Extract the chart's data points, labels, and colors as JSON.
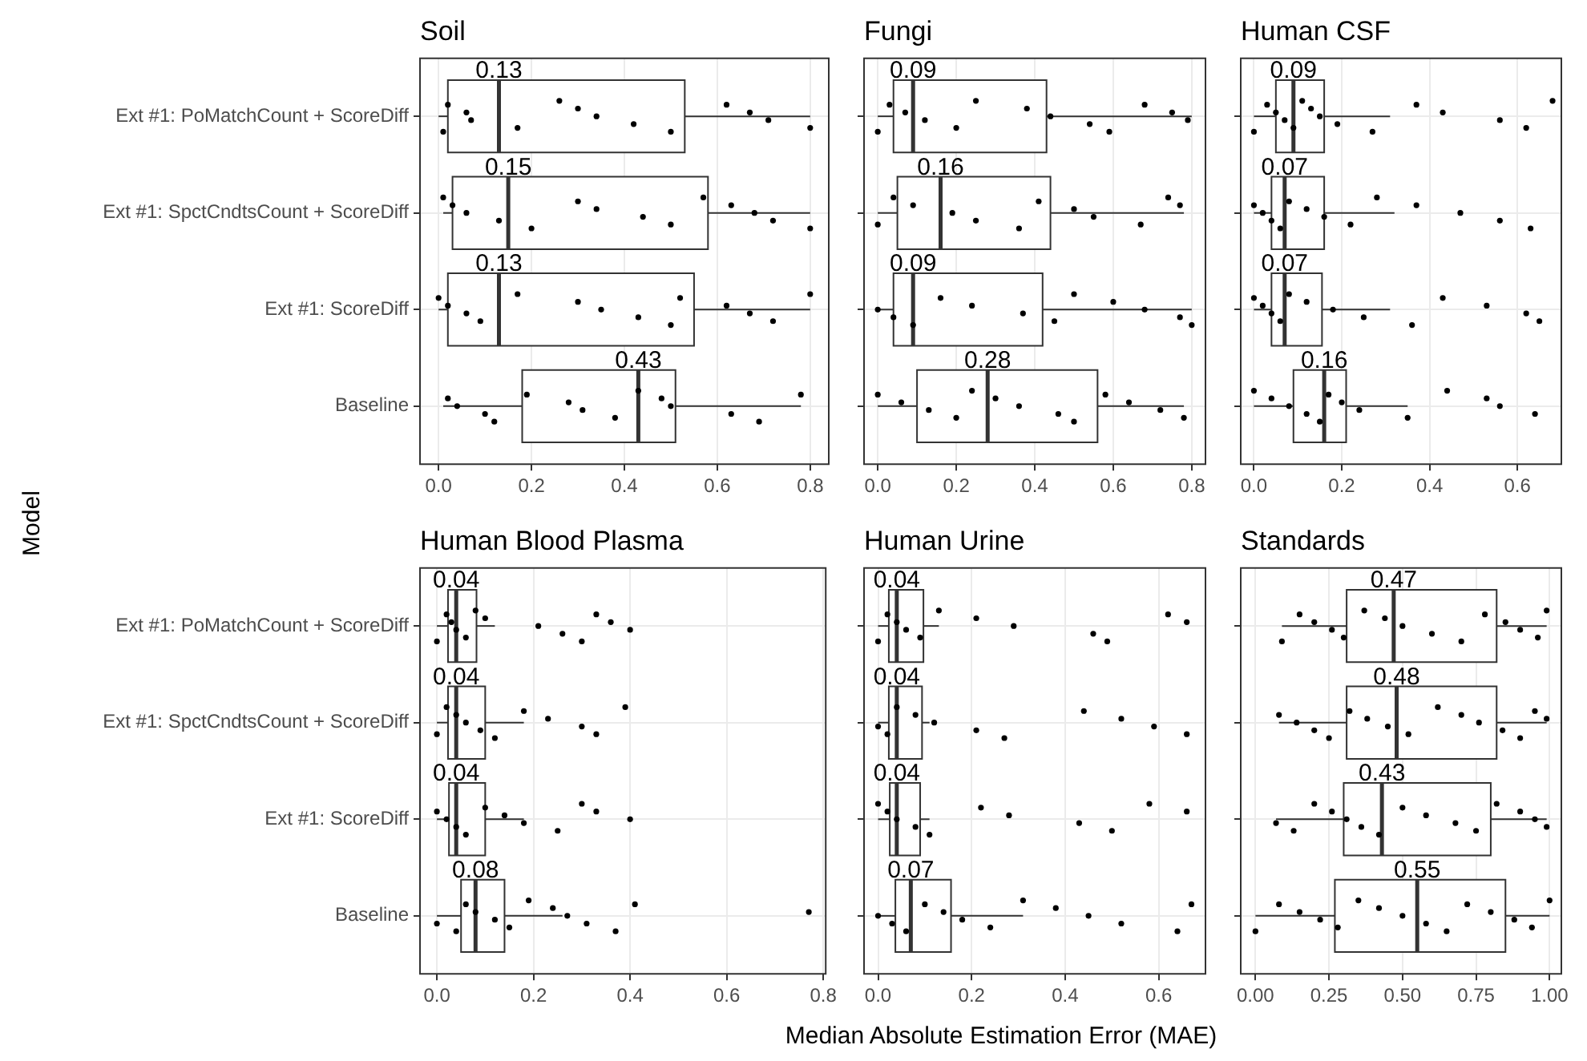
{
  "chart_data": [
    {
      "type": "box",
      "orientation": "horizontal",
      "title": "Soil",
      "ylabel": "Model",
      "grid": true,
      "categories": [
        "Ext #1: PoMatchCount + ScoreDiff",
        "Ext #1: SpctCndtsCount + ScoreDiff",
        "Ext #1: ScoreDiff",
        "Baseline"
      ],
      "xlim": [
        -0.04,
        0.84
      ],
      "xticks": [
        {
          "value": 0,
          "label": "0.0"
        },
        0.2,
        0.4,
        0.6,
        0.8
      ],
      "boxes": [
        {
          "low": 0.0,
          "q1": 0.02,
          "median": 0.13,
          "q3": 0.53,
          "high": 0.8
        },
        {
          "low": 0.01,
          "q1": 0.03,
          "median": 0.15,
          "q3": 0.58,
          "high": 0.8
        },
        {
          "low": 0.0,
          "q1": 0.02,
          "median": 0.13,
          "q3": 0.55,
          "high": 0.8
        },
        {
          "low": 0.01,
          "q1": 0.18,
          "median": 0.43,
          "q3": 0.51,
          "high": 0.78
        }
      ],
      "annotations": [
        {
          "text": "0.13",
          "x": 0.13,
          "y": "Ext #1: PoMatchCount + ScoreDiff"
        },
        {
          "text": "0.15",
          "x": 0.15,
          "y": "Ext #1: SpctCndtsCount + ScoreDiff"
        },
        {
          "text": "0.13",
          "x": 0.13,
          "y": "Ext #1: ScoreDiff"
        },
        {
          "text": "0.43",
          "x": 0.43,
          "y": "Baseline"
        }
      ],
      "series": [
        {
          "type": "scatter",
          "color": "#000000",
          "marker": "circle",
          "x": [
            "Ext #1: PoMatchCount + ScoreDiff",
            "Ext #1: PoMatchCount + ScoreDiff",
            "Ext #1: PoMatchCount + ScoreDiff",
            "Ext #1: PoMatchCount + ScoreDiff",
            "Ext #1: PoMatchCount + ScoreDiff",
            "Ext #1: PoMatchCount + ScoreDiff",
            "Ext #1: PoMatchCount + ScoreDiff",
            "Ext #1: PoMatchCount + ScoreDiff",
            "Ext #1: PoMatchCount + ScoreDiff",
            "Ext #1: PoMatchCount + ScoreDiff",
            "Ext #1: PoMatchCount + ScoreDiff",
            "Ext #1: PoMatchCount + ScoreDiff",
            "Ext #1: PoMatchCount + ScoreDiff",
            "Ext #1: PoMatchCount + ScoreDiff",
            "Ext #1: SpctCndtsCount + ScoreDiff",
            "Ext #1: SpctCndtsCount + ScoreDiff",
            "Ext #1: SpctCndtsCount + ScoreDiff",
            "Ext #1: SpctCndtsCount + ScoreDiff",
            "Ext #1: SpctCndtsCount + ScoreDiff",
            "Ext #1: SpctCndtsCount + ScoreDiff",
            "Ext #1: SpctCndtsCount + ScoreDiff",
            "Ext #1: SpctCndtsCount + ScoreDiff",
            "Ext #1: SpctCndtsCount + ScoreDiff",
            "Ext #1: SpctCndtsCount + ScoreDiff",
            "Ext #1: SpctCndtsCount + ScoreDiff",
            "Ext #1: SpctCndtsCount + ScoreDiff",
            "Ext #1: SpctCndtsCount + ScoreDiff",
            "Ext #1: SpctCndtsCount + ScoreDiff",
            "Ext #1: ScoreDiff",
            "Ext #1: ScoreDiff",
            "Ext #1: ScoreDiff",
            "Ext #1: ScoreDiff",
            "Ext #1: ScoreDiff",
            "Ext #1: ScoreDiff",
            "Ext #1: ScoreDiff",
            "Ext #1: ScoreDiff",
            "Ext #1: ScoreDiff",
            "Ext #1: ScoreDiff",
            "Ext #1: ScoreDiff",
            "Ext #1: ScoreDiff",
            "Ext #1: ScoreDiff",
            "Ext #1: ScoreDiff",
            "Baseline",
            "Baseline",
            "Baseline",
            "Baseline",
            "Baseline",
            "Baseline",
            "Baseline",
            "Baseline",
            "Baseline",
            "Baseline",
            "Baseline",
            "Baseline",
            "Baseline",
            "Baseline"
          ],
          "values": [
            0.01,
            0.02,
            0.06,
            0.07,
            0.17,
            0.26,
            0.3,
            0.34,
            0.42,
            0.5,
            0.62,
            0.67,
            0.71,
            0.8,
            0.01,
            0.03,
            0.06,
            0.13,
            0.2,
            0.3,
            0.34,
            0.44,
            0.5,
            0.57,
            0.63,
            0.68,
            0.72,
            0.8,
            0.0,
            0.02,
            0.06,
            0.09,
            0.17,
            0.3,
            0.35,
            0.43,
            0.5,
            0.52,
            0.62,
            0.67,
            0.72,
            0.8,
            0.02,
            0.04,
            0.1,
            0.12,
            0.19,
            0.28,
            0.31,
            0.38,
            0.43,
            0.48,
            0.5,
            0.63,
            0.69,
            0.78
          ]
        }
      ]
    },
    {
      "type": "box",
      "orientation": "horizontal",
      "title": "Fungi",
      "grid": true,
      "tick_labels": "x",
      "categories": [
        "Ext #1: PoMatchCount + ScoreDiff",
        "Ext #1: SpctCndtsCount + ScoreDiff",
        "Ext #1: ScoreDiff",
        "Baseline"
      ],
      "xlim": [
        -0.035,
        0.835
      ],
      "xticks": [
        {
          "value": 0,
          "label": "0.0"
        },
        0.2,
        0.4,
        0.6,
        0.8
      ],
      "boxes": [
        {
          "low": 0.0,
          "q1": 0.04,
          "median": 0.09,
          "q3": 0.43,
          "high": 0.8
        },
        {
          "low": 0.0,
          "q1": 0.05,
          "median": 0.16,
          "q3": 0.44,
          "high": 0.78
        },
        {
          "low": 0.0,
          "q1": 0.04,
          "median": 0.09,
          "q3": 0.42,
          "high": 0.8
        },
        {
          "low": 0.0,
          "q1": 0.1,
          "median": 0.28,
          "q3": 0.56,
          "high": 0.78
        }
      ],
      "annotations": [
        {
          "text": "0.09",
          "x": 0.09,
          "y": "Ext #1: PoMatchCount + ScoreDiff"
        },
        {
          "text": "0.16",
          "x": 0.16,
          "y": "Ext #1: SpctCndtsCount + ScoreDiff"
        },
        {
          "text": "0.09",
          "x": 0.09,
          "y": "Ext #1: ScoreDiff"
        },
        {
          "text": "0.28",
          "x": 0.28,
          "y": "Baseline"
        }
      ],
      "series": [
        {
          "type": "scatter",
          "color": "#000000",
          "marker": "circle",
          "x": [
            "Ext #1: PoMatchCount + ScoreDiff",
            "Ext #1: PoMatchCount + ScoreDiff",
            "Ext #1: PoMatchCount + ScoreDiff",
            "Ext #1: PoMatchCount + ScoreDiff",
            "Ext #1: PoMatchCount + ScoreDiff",
            "Ext #1: PoMatchCount + ScoreDiff",
            "Ext #1: PoMatchCount + ScoreDiff",
            "Ext #1: PoMatchCount + ScoreDiff",
            "Ext #1: PoMatchCount + ScoreDiff",
            "Ext #1: PoMatchCount + ScoreDiff",
            "Ext #1: PoMatchCount + ScoreDiff",
            "Ext #1: PoMatchCount + ScoreDiff",
            "Ext #1: PoMatchCount + ScoreDiff",
            "Ext #1: SpctCndtsCount + ScoreDiff",
            "Ext #1: SpctCndtsCount + ScoreDiff",
            "Ext #1: SpctCndtsCount + ScoreDiff",
            "Ext #1: SpctCndtsCount + ScoreDiff",
            "Ext #1: SpctCndtsCount + ScoreDiff",
            "Ext #1: SpctCndtsCount + ScoreDiff",
            "Ext #1: SpctCndtsCount + ScoreDiff",
            "Ext #1: SpctCndtsCount + ScoreDiff",
            "Ext #1: SpctCndtsCount + ScoreDiff",
            "Ext #1: SpctCndtsCount + ScoreDiff",
            "Ext #1: SpctCndtsCount + ScoreDiff",
            "Ext #1: SpctCndtsCount + ScoreDiff",
            "Ext #1: ScoreDiff",
            "Ext #1: ScoreDiff",
            "Ext #1: ScoreDiff",
            "Ext #1: ScoreDiff",
            "Ext #1: ScoreDiff",
            "Ext #1: ScoreDiff",
            "Ext #1: ScoreDiff",
            "Ext #1: ScoreDiff",
            "Ext #1: ScoreDiff",
            "Ext #1: ScoreDiff",
            "Ext #1: ScoreDiff",
            "Ext #1: ScoreDiff",
            "Baseline",
            "Baseline",
            "Baseline",
            "Baseline",
            "Baseline",
            "Baseline",
            "Baseline",
            "Baseline",
            "Baseline",
            "Baseline",
            "Baseline",
            "Baseline",
            "Baseline"
          ],
          "values": [
            0.0,
            0.03,
            0.07,
            0.12,
            0.2,
            0.25,
            0.38,
            0.44,
            0.54,
            0.59,
            0.68,
            0.75,
            0.79,
            0.0,
            0.04,
            0.09,
            0.19,
            0.25,
            0.36,
            0.41,
            0.5,
            0.55,
            0.67,
            0.74,
            0.77,
            0.0,
            0.04,
            0.09,
            0.16,
            0.24,
            0.37,
            0.45,
            0.5,
            0.6,
            0.68,
            0.77,
            0.8,
            0.0,
            0.06,
            0.13,
            0.2,
            0.24,
            0.3,
            0.36,
            0.46,
            0.5,
            0.58,
            0.64,
            0.72,
            0.78
          ]
        }
      ]
    },
    {
      "type": "box",
      "orientation": "horizontal",
      "title": "Human CSF",
      "grid": true,
      "tick_labels": "x",
      "categories": [
        "Ext #1: PoMatchCount + ScoreDiff",
        "Ext #1: SpctCndtsCount + ScoreDiff",
        "Ext #1: ScoreDiff",
        "Baseline"
      ],
      "xlim": [
        -0.03,
        0.7
      ],
      "xticks": [
        {
          "value": 0,
          "label": "0.0"
        },
        0.2,
        0.4,
        0.6
      ],
      "boxes": [
        {
          "low": 0.0,
          "q1": 0.05,
          "median": 0.09,
          "q3": 0.16,
          "high": 0.31
        },
        {
          "low": 0.0,
          "q1": 0.04,
          "median": 0.07,
          "q3": 0.16,
          "high": 0.32
        },
        {
          "low": 0.0,
          "q1": 0.04,
          "median": 0.07,
          "q3": 0.155,
          "high": 0.31
        },
        {
          "low": 0.0,
          "q1": 0.09,
          "median": 0.16,
          "q3": 0.21,
          "high": 0.35
        }
      ],
      "annotations": [
        {
          "text": "0.09",
          "x": 0.09,
          "y": "Ext #1: PoMatchCount + ScoreDiff"
        },
        {
          "text": "0.07",
          "x": 0.07,
          "y": "Ext #1: SpctCndtsCount + ScoreDiff"
        },
        {
          "text": "0.07",
          "x": 0.07,
          "y": "Ext #1: ScoreDiff"
        },
        {
          "text": "0.16",
          "x": 0.16,
          "y": "Baseline"
        }
      ],
      "series": [
        {
          "type": "scatter",
          "color": "#000000",
          "marker": "circle",
          "x": [
            "Ext #1: PoMatchCount + ScoreDiff",
            "Ext #1: PoMatchCount + ScoreDiff",
            "Ext #1: PoMatchCount + ScoreDiff",
            "Ext #1: PoMatchCount + ScoreDiff",
            "Ext #1: PoMatchCount + ScoreDiff",
            "Ext #1: PoMatchCount + ScoreDiff",
            "Ext #1: PoMatchCount + ScoreDiff",
            "Ext #1: PoMatchCount + ScoreDiff",
            "Ext #1: PoMatchCount + ScoreDiff",
            "Ext #1: PoMatchCount + ScoreDiff",
            "Ext #1: PoMatchCount + ScoreDiff",
            "Ext #1: PoMatchCount + ScoreDiff",
            "Ext #1: PoMatchCount + ScoreDiff",
            "Ext #1: PoMatchCount + ScoreDiff",
            "Ext #1: PoMatchCount + ScoreDiff",
            "Ext #1: SpctCndtsCount + ScoreDiff",
            "Ext #1: SpctCndtsCount + ScoreDiff",
            "Ext #1: SpctCndtsCount + ScoreDiff",
            "Ext #1: SpctCndtsCount + ScoreDiff",
            "Ext #1: SpctCndtsCount + ScoreDiff",
            "Ext #1: SpctCndtsCount + ScoreDiff",
            "Ext #1: SpctCndtsCount + ScoreDiff",
            "Ext #1: SpctCndtsCount + ScoreDiff",
            "Ext #1: SpctCndtsCount + ScoreDiff",
            "Ext #1: SpctCndtsCount + ScoreDiff",
            "Ext #1: SpctCndtsCount + ScoreDiff",
            "Ext #1: SpctCndtsCount + ScoreDiff",
            "Ext #1: SpctCndtsCount + ScoreDiff",
            "Ext #1: ScoreDiff",
            "Ext #1: ScoreDiff",
            "Ext #1: ScoreDiff",
            "Ext #1: ScoreDiff",
            "Ext #1: ScoreDiff",
            "Ext #1: ScoreDiff",
            "Ext #1: ScoreDiff",
            "Ext #1: ScoreDiff",
            "Ext #1: ScoreDiff",
            "Ext #1: ScoreDiff",
            "Ext #1: ScoreDiff",
            "Ext #1: ScoreDiff",
            "Ext #1: ScoreDiff",
            "Baseline",
            "Baseline",
            "Baseline",
            "Baseline",
            "Baseline",
            "Baseline",
            "Baseline",
            "Baseline",
            "Baseline",
            "Baseline",
            "Baseline",
            "Baseline",
            "Baseline"
          ],
          "values": [
            0.0,
            0.03,
            0.05,
            0.07,
            0.09,
            0.11,
            0.13,
            0.15,
            0.19,
            0.27,
            0.37,
            0.43,
            0.56,
            0.62,
            0.68,
            0.0,
            0.02,
            0.04,
            0.06,
            0.08,
            0.12,
            0.16,
            0.22,
            0.28,
            0.37,
            0.47,
            0.56,
            0.63,
            0.0,
            0.02,
            0.04,
            0.06,
            0.08,
            0.12,
            0.18,
            0.25,
            0.36,
            0.43,
            0.53,
            0.62,
            0.65,
            0.0,
            0.04,
            0.08,
            0.12,
            0.15,
            0.17,
            0.2,
            0.24,
            0.35,
            0.44,
            0.53,
            0.56,
            0.64
          ]
        }
      ]
    },
    {
      "type": "box",
      "orientation": "horizontal",
      "title": "Human Blood Plasma",
      "grid": true,
      "categories": [
        "Ext #1: PoMatchCount + ScoreDiff",
        "Ext #1: SpctCndtsCount + ScoreDiff",
        "Ext #1: ScoreDiff",
        "Baseline"
      ],
      "xlim": [
        -0.035,
        0.805
      ],
      "xticks": [
        {
          "value": 0,
          "label": "0.0"
        },
        0.2,
        0.4,
        0.6,
        0.8
      ],
      "boxes": [
        {
          "low": 0.0,
          "q1": 0.023,
          "median": 0.04,
          "q3": 0.082,
          "high": 0.12
        },
        {
          "low": 0.0,
          "q1": 0.023,
          "median": 0.04,
          "q3": 0.1,
          "high": 0.18
        },
        {
          "low": 0.0,
          "q1": 0.025,
          "median": 0.04,
          "q3": 0.1,
          "high": 0.18
        },
        {
          "low": 0.0,
          "q1": 0.05,
          "median": 0.08,
          "q3": 0.14,
          "high": 0.26
        }
      ],
      "annotations": [
        {
          "text": "0.04",
          "x": 0.04,
          "y": "Ext #1: PoMatchCount + ScoreDiff"
        },
        {
          "text": "0.04",
          "x": 0.04,
          "y": "Ext #1: SpctCndtsCount + ScoreDiff"
        },
        {
          "text": "0.04",
          "x": 0.04,
          "y": "Ext #1: ScoreDiff"
        },
        {
          "text": "0.08",
          "x": 0.08,
          "y": "Baseline"
        }
      ],
      "series": [
        {
          "type": "scatter",
          "color": "#000000",
          "marker": "circle",
          "x": [
            "Ext #1: PoMatchCount + ScoreDiff",
            "Ext #1: PoMatchCount + ScoreDiff",
            "Ext #1: PoMatchCount + ScoreDiff",
            "Ext #1: PoMatchCount + ScoreDiff",
            "Ext #1: PoMatchCount + ScoreDiff",
            "Ext #1: PoMatchCount + ScoreDiff",
            "Ext #1: PoMatchCount + ScoreDiff",
            "Ext #1: PoMatchCount + ScoreDiff",
            "Ext #1: PoMatchCount + ScoreDiff",
            "Ext #1: PoMatchCount + ScoreDiff",
            "Ext #1: PoMatchCount + ScoreDiff",
            "Ext #1: PoMatchCount + ScoreDiff",
            "Ext #1: PoMatchCount + ScoreDiff",
            "Ext #1: SpctCndtsCount + ScoreDiff",
            "Ext #1: SpctCndtsCount + ScoreDiff",
            "Ext #1: SpctCndtsCount + ScoreDiff",
            "Ext #1: SpctCndtsCount + ScoreDiff",
            "Ext #1: SpctCndtsCount + ScoreDiff",
            "Ext #1: SpctCndtsCount + ScoreDiff",
            "Ext #1: SpctCndtsCount + ScoreDiff",
            "Ext #1: SpctCndtsCount + ScoreDiff",
            "Ext #1: SpctCndtsCount + ScoreDiff",
            "Ext #1: SpctCndtsCount + ScoreDiff",
            "Ext #1: SpctCndtsCount + ScoreDiff",
            "Ext #1: ScoreDiff",
            "Ext #1: ScoreDiff",
            "Ext #1: ScoreDiff",
            "Ext #1: ScoreDiff",
            "Ext #1: ScoreDiff",
            "Ext #1: ScoreDiff",
            "Ext #1: ScoreDiff",
            "Ext #1: ScoreDiff",
            "Ext #1: ScoreDiff",
            "Ext #1: ScoreDiff",
            "Ext #1: ScoreDiff",
            "Baseline",
            "Baseline",
            "Baseline",
            "Baseline",
            "Baseline",
            "Baseline",
            "Baseline",
            "Baseline",
            "Baseline",
            "Baseline",
            "Baseline",
            "Baseline",
            "Baseline"
          ],
          "values": [
            0.0,
            0.02,
            0.03,
            0.04,
            0.06,
            0.08,
            0.1,
            0.21,
            0.26,
            0.3,
            0.33,
            0.36,
            0.4,
            0.0,
            0.02,
            0.04,
            0.06,
            0.09,
            0.12,
            0.18,
            0.23,
            0.3,
            0.33,
            0.39,
            0.0,
            0.02,
            0.04,
            0.06,
            0.1,
            0.14,
            0.18,
            0.25,
            0.3,
            0.33,
            0.4,
            0.0,
            0.04,
            0.06,
            0.08,
            0.12,
            0.15,
            0.19,
            0.24,
            0.27,
            0.31,
            0.37,
            0.41,
            0.77
          ]
        }
      ]
    },
    {
      "type": "box",
      "orientation": "horizontal",
      "title": "Human Urine",
      "xlabel": "Median Absolute Estimation Error (MAE)",
      "grid": true,
      "tick_labels": "x",
      "categories": [
        "Ext #1: PoMatchCount + ScoreDiff",
        "Ext #1: SpctCndtsCount + ScoreDiff",
        "Ext #1: ScoreDiff",
        "Baseline"
      ],
      "xlim": [
        -0.03,
        0.7
      ],
      "xticks": [
        {
          "value": 0,
          "label": "0.0"
        },
        0.2,
        0.4,
        0.6
      ],
      "boxes": [
        {
          "low": 0.0,
          "q1": 0.023,
          "median": 0.04,
          "q3": 0.097,
          "high": 0.13
        },
        {
          "low": 0.0,
          "q1": 0.023,
          "median": 0.04,
          "q3": 0.094,
          "high": 0.11
        },
        {
          "low": 0.0,
          "q1": 0.025,
          "median": 0.04,
          "q3": 0.09,
          "high": 0.11
        },
        {
          "low": 0.0,
          "q1": 0.037,
          "median": 0.07,
          "q3": 0.156,
          "high": 0.31
        }
      ],
      "annotations": [
        {
          "text": "0.04",
          "x": 0.04,
          "y": "Ext #1: PoMatchCount + ScoreDiff"
        },
        {
          "text": "0.04",
          "x": 0.04,
          "y": "Ext #1: SpctCndtsCount + ScoreDiff"
        },
        {
          "text": "0.04",
          "x": 0.04,
          "y": "Ext #1: ScoreDiff"
        },
        {
          "text": "0.07",
          "x": 0.07,
          "y": "Baseline"
        }
      ],
      "series": [
        {
          "type": "scatter",
          "color": "#000000",
          "marker": "circle",
          "x": [
            "Ext #1: PoMatchCount + ScoreDiff",
            "Ext #1: PoMatchCount + ScoreDiff",
            "Ext #1: PoMatchCount + ScoreDiff",
            "Ext #1: PoMatchCount + ScoreDiff",
            "Ext #1: PoMatchCount + ScoreDiff",
            "Ext #1: PoMatchCount + ScoreDiff",
            "Ext #1: PoMatchCount + ScoreDiff",
            "Ext #1: PoMatchCount + ScoreDiff",
            "Ext #1: PoMatchCount + ScoreDiff",
            "Ext #1: PoMatchCount + ScoreDiff",
            "Ext #1: PoMatchCount + ScoreDiff",
            "Ext #1: PoMatchCount + ScoreDiff",
            "Ext #1: SpctCndtsCount + ScoreDiff",
            "Ext #1: SpctCndtsCount + ScoreDiff",
            "Ext #1: SpctCndtsCount + ScoreDiff",
            "Ext #1: SpctCndtsCount + ScoreDiff",
            "Ext #1: SpctCndtsCount + ScoreDiff",
            "Ext #1: SpctCndtsCount + ScoreDiff",
            "Ext #1: SpctCndtsCount + ScoreDiff",
            "Ext #1: SpctCndtsCount + ScoreDiff",
            "Ext #1: SpctCndtsCount + ScoreDiff",
            "Ext #1: SpctCndtsCount + ScoreDiff",
            "Ext #1: SpctCndtsCount + ScoreDiff",
            "Ext #1: ScoreDiff",
            "Ext #1: ScoreDiff",
            "Ext #1: ScoreDiff",
            "Ext #1: ScoreDiff",
            "Ext #1: ScoreDiff",
            "Ext #1: ScoreDiff",
            "Ext #1: ScoreDiff",
            "Ext #1: ScoreDiff",
            "Ext #1: ScoreDiff",
            "Ext #1: ScoreDiff",
            "Ext #1: ScoreDiff",
            "Baseline",
            "Baseline",
            "Baseline",
            "Baseline",
            "Baseline",
            "Baseline",
            "Baseline",
            "Baseline",
            "Baseline",
            "Baseline",
            "Baseline",
            "Baseline",
            "Baseline"
          ],
          "values": [
            0.0,
            0.02,
            0.04,
            0.06,
            0.09,
            0.13,
            0.21,
            0.29,
            0.46,
            0.49,
            0.62,
            0.66,
            0.0,
            0.02,
            0.04,
            0.08,
            0.12,
            0.21,
            0.27,
            0.44,
            0.52,
            0.59,
            0.66,
            0.0,
            0.02,
            0.04,
            0.08,
            0.11,
            0.22,
            0.28,
            0.43,
            0.5,
            0.58,
            0.66,
            0.0,
            0.03,
            0.06,
            0.1,
            0.14,
            0.18,
            0.24,
            0.31,
            0.38,
            0.45,
            0.52,
            0.64,
            0.67
          ]
        }
      ]
    },
    {
      "type": "box",
      "orientation": "horizontal",
      "title": "Standards",
      "grid": true,
      "tick_labels": "x",
      "categories": [
        "Ext #1: PoMatchCount + ScoreDiff",
        "Ext #1: SpctCndtsCount + ScoreDiff",
        "Ext #1: ScoreDiff",
        "Baseline"
      ],
      "xlim": [
        -0.05,
        1.04
      ],
      "xticks": [
        {
          "value": 0,
          "label": "0.00"
        },
        0.25,
        {
          "value": 0.5,
          "label": "0.50"
        },
        0.75,
        {
          "value": 1,
          "label": "1.00"
        }
      ],
      "boxes": [
        {
          "low": 0.09,
          "q1": 0.31,
          "median": 0.47,
          "q3": 0.82,
          "high": 0.99
        },
        {
          "low": 0.08,
          "q1": 0.31,
          "median": 0.48,
          "q3": 0.82,
          "high": 0.99
        },
        {
          "low": 0.07,
          "q1": 0.3,
          "median": 0.43,
          "q3": 0.8,
          "high": 0.99
        },
        {
          "low": 0.0,
          "q1": 0.27,
          "median": 0.55,
          "q3": 0.85,
          "high": 1.0
        }
      ],
      "annotations": [
        {
          "text": "0.47",
          "x": 0.47,
          "y": "Ext #1: PoMatchCount + ScoreDiff"
        },
        {
          "text": "0.48",
          "x": 0.48,
          "y": "Ext #1: SpctCndtsCount + ScoreDiff"
        },
        {
          "text": "0.43",
          "x": 0.43,
          "y": "Ext #1: ScoreDiff"
        },
        {
          "text": "0.55",
          "x": 0.55,
          "y": "Baseline"
        }
      ],
      "series": [
        {
          "type": "scatter",
          "color": "#000000",
          "marker": "circle",
          "x": [
            "Ext #1: PoMatchCount + ScoreDiff",
            "Ext #1: PoMatchCount + ScoreDiff",
            "Ext #1: PoMatchCount + ScoreDiff",
            "Ext #1: PoMatchCount + ScoreDiff",
            "Ext #1: PoMatchCount + ScoreDiff",
            "Ext #1: PoMatchCount + ScoreDiff",
            "Ext #1: PoMatchCount + ScoreDiff",
            "Ext #1: PoMatchCount + ScoreDiff",
            "Ext #1: PoMatchCount + ScoreDiff",
            "Ext #1: PoMatchCount + ScoreDiff",
            "Ext #1: PoMatchCount + ScoreDiff",
            "Ext #1: PoMatchCount + ScoreDiff",
            "Ext #1: PoMatchCount + ScoreDiff",
            "Ext #1: PoMatchCount + ScoreDiff",
            "Ext #1: PoMatchCount + ScoreDiff",
            "Ext #1: SpctCndtsCount + ScoreDiff",
            "Ext #1: SpctCndtsCount + ScoreDiff",
            "Ext #1: SpctCndtsCount + ScoreDiff",
            "Ext #1: SpctCndtsCount + ScoreDiff",
            "Ext #1: SpctCndtsCount + ScoreDiff",
            "Ext #1: SpctCndtsCount + ScoreDiff",
            "Ext #1: SpctCndtsCount + ScoreDiff",
            "Ext #1: SpctCndtsCount + ScoreDiff",
            "Ext #1: SpctCndtsCount + ScoreDiff",
            "Ext #1: SpctCndtsCount + ScoreDiff",
            "Ext #1: SpctCndtsCount + ScoreDiff",
            "Ext #1: SpctCndtsCount + ScoreDiff",
            "Ext #1: SpctCndtsCount + ScoreDiff",
            "Ext #1: SpctCndtsCount + ScoreDiff",
            "Ext #1: SpctCndtsCount + ScoreDiff",
            "Ext #1: ScoreDiff",
            "Ext #1: ScoreDiff",
            "Ext #1: ScoreDiff",
            "Ext #1: ScoreDiff",
            "Ext #1: ScoreDiff",
            "Ext #1: ScoreDiff",
            "Ext #1: ScoreDiff",
            "Ext #1: ScoreDiff",
            "Ext #1: ScoreDiff",
            "Ext #1: ScoreDiff",
            "Ext #1: ScoreDiff",
            "Ext #1: ScoreDiff",
            "Ext #1: ScoreDiff",
            "Ext #1: ScoreDiff",
            "Ext #1: ScoreDiff",
            "Baseline",
            "Baseline",
            "Baseline",
            "Baseline",
            "Baseline",
            "Baseline",
            "Baseline",
            "Baseline",
            "Baseline",
            "Baseline",
            "Baseline",
            "Baseline",
            "Baseline",
            "Baseline",
            "Baseline"
          ],
          "values": [
            0.09,
            0.15,
            0.2,
            0.26,
            0.3,
            0.37,
            0.44,
            0.5,
            0.6,
            0.7,
            0.78,
            0.85,
            0.9,
            0.96,
            0.99,
            0.08,
            0.14,
            0.2,
            0.25,
            0.32,
            0.38,
            0.45,
            0.52,
            0.62,
            0.7,
            0.76,
            0.84,
            0.9,
            0.95,
            0.99,
            0.07,
            0.13,
            0.2,
            0.26,
            0.31,
            0.36,
            0.42,
            0.5,
            0.58,
            0.68,
            0.75,
            0.82,
            0.9,
            0.95,
            0.99,
            0.0,
            0.08,
            0.15,
            0.22,
            0.28,
            0.35,
            0.42,
            0.5,
            0.58,
            0.65,
            0.72,
            0.8,
            0.88,
            0.94,
            1.0
          ]
        }
      ]
    }
  ]
}
